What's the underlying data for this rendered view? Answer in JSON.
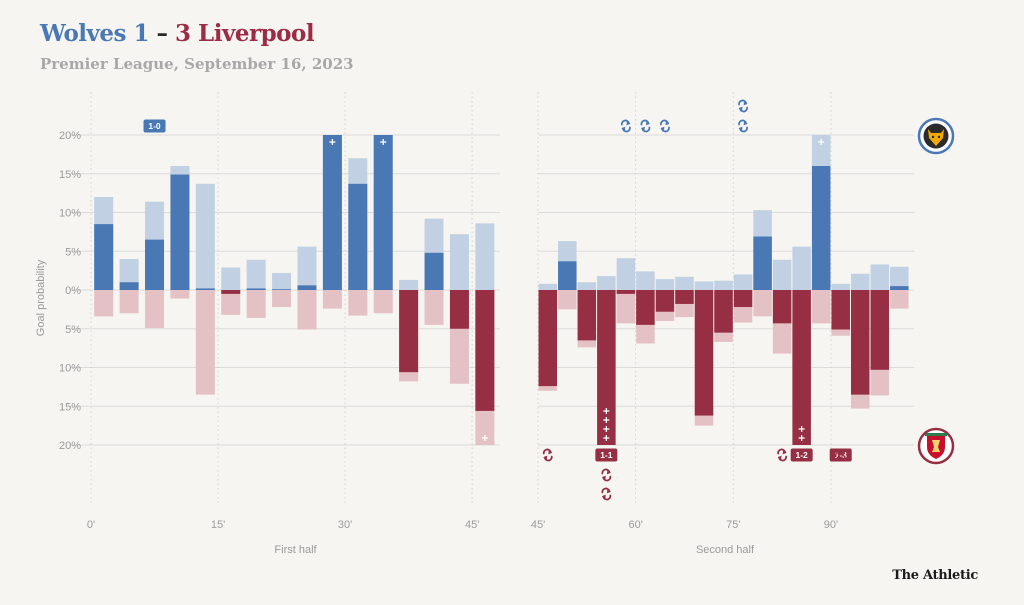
{
  "header": {
    "home_title": "Wolves 1",
    "separator": "–",
    "away_title": "3 Liverpool",
    "subtitle": "Premier League, September 16, 2023"
  },
  "brand": "The Athletic",
  "colors": {
    "home": "#4a78b5",
    "home_light": "#c1d0e2",
    "away": "#962f44",
    "away_light": "#e4c1c4",
    "axis_text": "#9a9a9a",
    "grid": "#dcdcdc",
    "score_home_bg": "#4a78b5",
    "score_away_bg": "#962f44"
  },
  "chart_data": {
    "type": "bar",
    "ylabel": "Goal probability",
    "y_ticks": [
      "20%",
      "15%",
      "10%",
      "5%",
      "0%",
      "5%",
      "10%",
      "15%",
      "20%"
    ],
    "y_tick_values": [
      20,
      15,
      10,
      5,
      0,
      -5,
      -10,
      -15,
      -20
    ],
    "ylim": [
      -20,
      20
    ],
    "home_team_icon": "wolves-badge-icon",
    "away_team_icon": "liverpool-badge-icon",
    "panels": [
      {
        "xlabel": "First half",
        "x_ticks": [
          "0'",
          "15'",
          "30'",
          "45'"
        ],
        "x_tick_values": [
          0,
          15,
          30,
          45
        ],
        "xlim": [
          0,
          47
        ],
        "bars": [
          {
            "minute": 1.5,
            "home_dark": 8.5,
            "home_light": 12.0,
            "away_dark": 0,
            "away_light": 3.4
          },
          {
            "minute": 4.5,
            "home_dark": 1.0,
            "home_light": 4.0,
            "away_dark": 0,
            "away_light": 3.0
          },
          {
            "minute": 7.5,
            "home_dark": 6.5,
            "home_light": 11.4,
            "away_dark": 0,
            "away_light": 4.9
          },
          {
            "minute": 10.5,
            "home_dark": 14.9,
            "home_light": 16.0,
            "away_dark": 0,
            "away_light": 1.1
          },
          {
            "minute": 13.5,
            "home_dark": 0.2,
            "home_light": 13.7,
            "away_dark": 0,
            "away_light": 13.5
          },
          {
            "minute": 16.5,
            "home_dark": 0,
            "home_light": 2.9,
            "away_dark": 0.5,
            "away_light": 3.2
          },
          {
            "minute": 19.5,
            "home_dark": 0.2,
            "home_light": 3.9,
            "away_dark": 0,
            "away_light": 3.6
          },
          {
            "minute": 22.5,
            "home_dark": 0.1,
            "home_light": 2.2,
            "away_dark": 0,
            "away_light": 2.2
          },
          {
            "minute": 25.5,
            "home_dark": 0.6,
            "home_light": 5.6,
            "away_dark": 0,
            "away_light": 5.1
          },
          {
            "minute": 28.5,
            "home_dark": 20.0,
            "home_light": 20.0,
            "away_dark": 0,
            "away_light": 2.4
          },
          {
            "minute": 31.5,
            "home_dark": 13.7,
            "home_light": 17.0,
            "away_dark": 0,
            "away_light": 3.3
          },
          {
            "minute": 34.5,
            "home_dark": 20.0,
            "home_light": 20.0,
            "away_dark": 0,
            "away_light": 3.0
          },
          {
            "minute": 37.5,
            "home_dark": 0,
            "home_light": 1.3,
            "away_dark": 10.6,
            "away_light": 11.8
          },
          {
            "minute": 40.5,
            "home_dark": 4.8,
            "home_light": 9.2,
            "away_dark": 0,
            "away_light": 4.5
          },
          {
            "minute": 43.5,
            "home_dark": 0,
            "home_light": 7.2,
            "away_dark": 5.0,
            "away_light": 12.1
          },
          {
            "minute": 46.5,
            "home_dark": 0,
            "home_light": 8.6,
            "away_dark": 15.6,
            "away_light": 20.0
          }
        ],
        "plus_markers": [
          {
            "minute": 28.5,
            "side": "home",
            "count": 1
          },
          {
            "minute": 34.5,
            "side": "home",
            "count": 1
          },
          {
            "minute": 46.5,
            "side": "away",
            "count": 1
          }
        ],
        "score_labels": [
          {
            "minute": 7.5,
            "side": "home",
            "text": "1-0"
          }
        ],
        "subs": []
      },
      {
        "xlabel": "Second half",
        "x_ticks": [
          "45'",
          "60'",
          "75'",
          "90'"
        ],
        "x_tick_values": [
          45,
          60,
          75,
          90
        ],
        "xlim": [
          45,
          100
        ],
        "bars": [
          {
            "minute": 46.5,
            "home_dark": 0,
            "home_light": 0.8,
            "away_dark": 12.4,
            "away_light": 13.0
          },
          {
            "minute": 49.5,
            "home_dark": 3.7,
            "home_light": 6.3,
            "away_dark": 0,
            "away_light": 2.5
          },
          {
            "minute": 52.5,
            "home_dark": 0,
            "home_light": 1.0,
            "away_dark": 6.5,
            "away_light": 7.4
          },
          {
            "minute": 55.5,
            "home_dark": 0,
            "home_light": 1.8,
            "away_dark": 20.0,
            "away_light": 20.0
          },
          {
            "minute": 58.5,
            "home_dark": 0,
            "home_light": 4.1,
            "away_dark": 0.5,
            "away_light": 4.3
          },
          {
            "minute": 61.5,
            "home_dark": 0,
            "home_light": 2.4,
            "away_dark": 4.5,
            "away_light": 6.9
          },
          {
            "minute": 64.5,
            "home_dark": 0,
            "home_light": 1.4,
            "away_dark": 2.8,
            "away_light": 4.0
          },
          {
            "minute": 67.5,
            "home_dark": 0,
            "home_light": 1.7,
            "away_dark": 1.8,
            "away_light": 3.5
          },
          {
            "minute": 70.5,
            "home_dark": 0,
            "home_light": 1.1,
            "away_dark": 16.2,
            "away_light": 17.5
          },
          {
            "minute": 73.5,
            "home_dark": 0,
            "home_light": 1.2,
            "away_dark": 5.5,
            "away_light": 6.7
          },
          {
            "minute": 76.5,
            "home_dark": 0,
            "home_light": 2.0,
            "away_dark": 2.2,
            "away_light": 4.2
          },
          {
            "minute": 79.5,
            "home_dark": 6.9,
            "home_light": 10.3,
            "away_dark": 0,
            "away_light": 3.4
          },
          {
            "minute": 82.5,
            "home_dark": 0,
            "home_light": 3.9,
            "away_dark": 4.3,
            "away_light": 8.2
          },
          {
            "minute": 85.5,
            "home_dark": 0,
            "home_light": 5.6,
            "away_dark": 20.0,
            "away_light": 20.0
          },
          {
            "minute": 88.5,
            "home_dark": 16.0,
            "home_light": 20.0,
            "away_dark": 0,
            "away_light": 4.3
          },
          {
            "minute": 91.5,
            "home_dark": 0,
            "home_light": 0.8,
            "away_dark": 5.1,
            "away_light": 5.9
          },
          {
            "minute": 94.5,
            "home_dark": 0,
            "home_light": 2.1,
            "away_dark": 13.5,
            "away_light": 15.3
          },
          {
            "minute": 97.5,
            "home_dark": 0,
            "home_light": 3.3,
            "away_dark": 10.3,
            "away_light": 13.6
          },
          {
            "minute": 100.5,
            "home_dark": 0.5,
            "home_light": 3.0,
            "away_dark": 0,
            "away_light": 2.4
          }
        ],
        "plus_markers": [
          {
            "minute": 55.5,
            "side": "away",
            "count": 4
          },
          {
            "minute": 85.5,
            "side": "away",
            "count": 2
          },
          {
            "minute": 88.5,
            "side": "home",
            "count": 1
          }
        ],
        "score_labels": [
          {
            "minute": 55.5,
            "side": "away",
            "text": "1-1"
          },
          {
            "minute": 85.5,
            "side": "away",
            "text": "1-2"
          },
          {
            "minute": 91.5,
            "side": "away",
            "text": "1-3"
          }
        ],
        "subs": [
          {
            "minute": 58.5,
            "side": "home",
            "count": 1
          },
          {
            "minute": 61.5,
            "side": "home",
            "count": 1
          },
          {
            "minute": 64.5,
            "side": "home",
            "count": 1
          },
          {
            "minute": 76.5,
            "side": "home",
            "count": 2
          },
          {
            "minute": 46.5,
            "side": "away",
            "count": 1
          },
          {
            "minute": 55.5,
            "side": "away",
            "count": 2
          },
          {
            "minute": 82.5,
            "side": "away",
            "count": 1
          },
          {
            "minute": 91.5,
            "side": "away",
            "count": 1
          }
        ]
      }
    ]
  }
}
